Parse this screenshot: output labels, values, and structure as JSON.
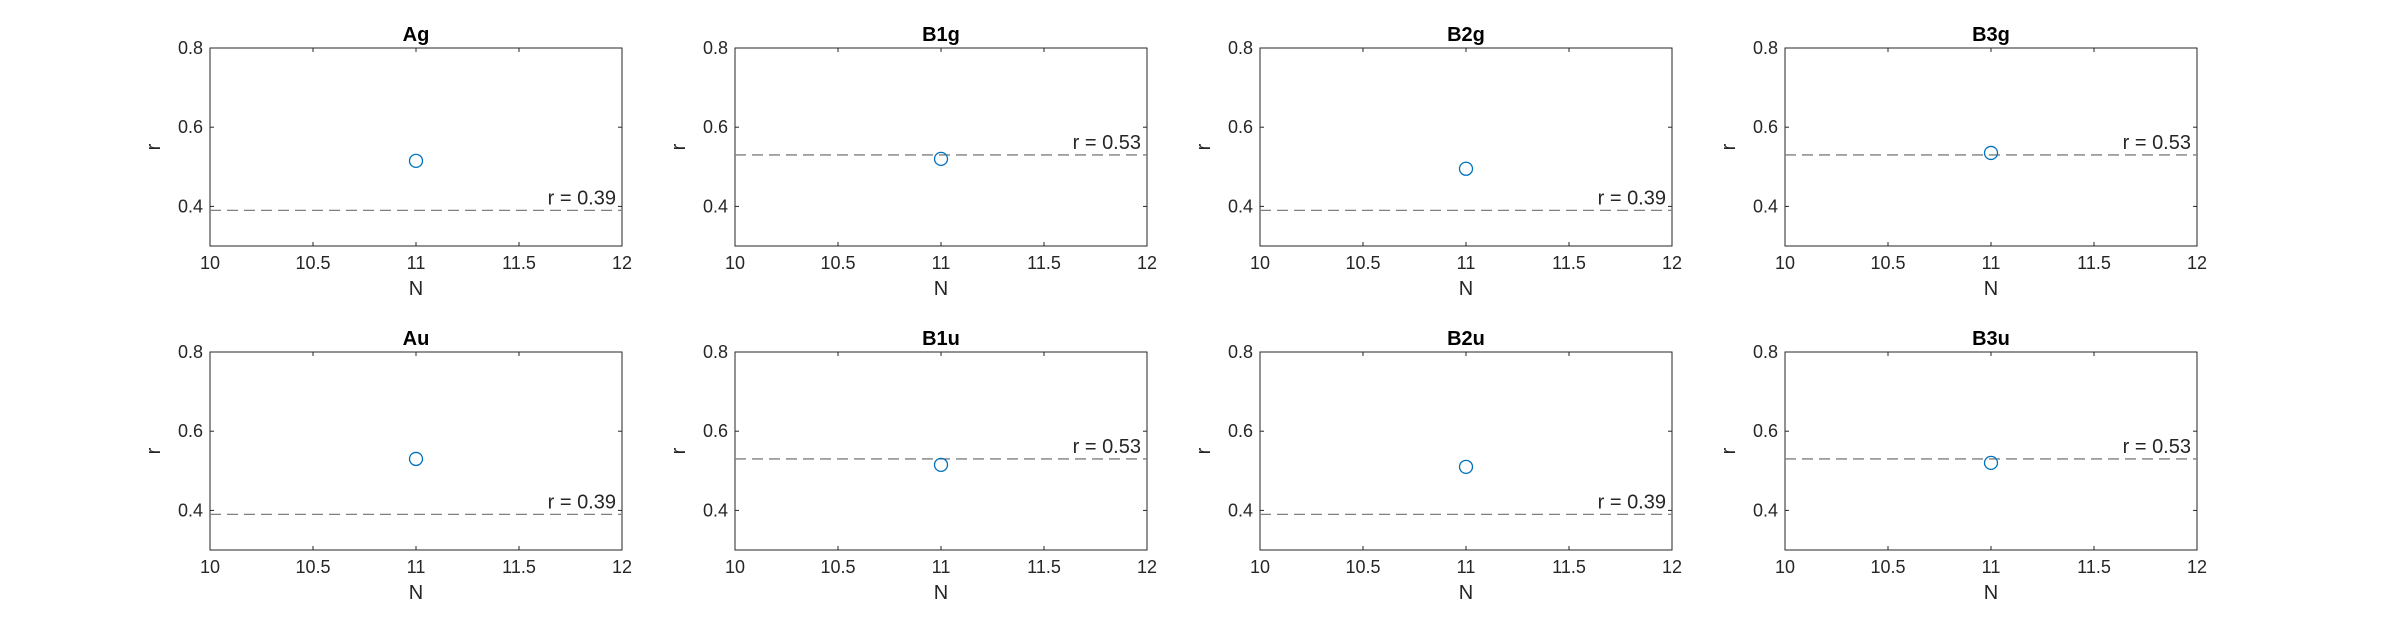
{
  "figure": {
    "colors": {
      "marker": "#0072BD",
      "reference_line": "#7f7f7f",
      "axes": "#262626",
      "background": "#ffffff"
    }
  },
  "chart_data": [
    {
      "type": "scatter",
      "title": "Ag",
      "xlabel": "N",
      "ylabel": "r",
      "xlim": [
        10,
        12
      ],
      "ylim": [
        0.3,
        0.8
      ],
      "xticks": [
        "10",
        "10.5",
        "11",
        "11.5",
        "12"
      ],
      "yticks": [
        "0.4",
        "0.6",
        "0.8"
      ],
      "points": [
        {
          "x": 11,
          "y": 0.515
        }
      ],
      "reference": {
        "y": 0.39,
        "label": "r = 0.39",
        "style": "dashed"
      },
      "grid": false
    },
    {
      "type": "scatter",
      "title": "B1g",
      "xlabel": "N",
      "ylabel": "r",
      "xlim": [
        10,
        12
      ],
      "ylim": [
        0.3,
        0.8
      ],
      "xticks": [
        "10",
        "10.5",
        "11",
        "11.5",
        "12"
      ],
      "yticks": [
        "0.4",
        "0.6",
        "0.8"
      ],
      "points": [
        {
          "x": 11,
          "y": 0.52
        }
      ],
      "reference": {
        "y": 0.53,
        "label": "r = 0.53",
        "style": "dashed"
      },
      "grid": false
    },
    {
      "type": "scatter",
      "title": "B2g",
      "xlabel": "N",
      "ylabel": "r",
      "xlim": [
        10,
        12
      ],
      "ylim": [
        0.3,
        0.8
      ],
      "xticks": [
        "10",
        "10.5",
        "11",
        "11.5",
        "12"
      ],
      "yticks": [
        "0.4",
        "0.6",
        "0.8"
      ],
      "points": [
        {
          "x": 11,
          "y": 0.495
        }
      ],
      "reference": {
        "y": 0.39,
        "label": "r = 0.39",
        "style": "dashed"
      },
      "grid": false
    },
    {
      "type": "scatter",
      "title": "B3g",
      "xlabel": "N",
      "ylabel": "r",
      "xlim": [
        10,
        12
      ],
      "ylim": [
        0.3,
        0.8
      ],
      "xticks": [
        "10",
        "10.5",
        "11",
        "11.5",
        "12"
      ],
      "yticks": [
        "0.4",
        "0.6",
        "0.8"
      ],
      "points": [
        {
          "x": 11,
          "y": 0.535
        }
      ],
      "reference": {
        "y": 0.53,
        "label": "r = 0.53",
        "style": "dashed"
      },
      "grid": false
    },
    {
      "type": "scatter",
      "title": "Au",
      "xlabel": "N",
      "ylabel": "r",
      "xlim": [
        10,
        12
      ],
      "ylim": [
        0.3,
        0.8
      ],
      "xticks": [
        "10",
        "10.5",
        "11",
        "11.5",
        "12"
      ],
      "yticks": [
        "0.4",
        "0.6",
        "0.8"
      ],
      "points": [
        {
          "x": 11,
          "y": 0.53
        }
      ],
      "reference": {
        "y": 0.39,
        "label": "r = 0.39",
        "style": "dashed"
      },
      "grid": false
    },
    {
      "type": "scatter",
      "title": "B1u",
      "xlabel": "N",
      "ylabel": "r",
      "xlim": [
        10,
        12
      ],
      "ylim": [
        0.3,
        0.8
      ],
      "xticks": [
        "10",
        "10.5",
        "11",
        "11.5",
        "12"
      ],
      "yticks": [
        "0.4",
        "0.6",
        "0.8"
      ],
      "points": [
        {
          "x": 11,
          "y": 0.515
        }
      ],
      "reference": {
        "y": 0.53,
        "label": "r = 0.53",
        "style": "dashed"
      },
      "grid": false
    },
    {
      "type": "scatter",
      "title": "B2u",
      "xlabel": "N",
      "ylabel": "r",
      "xlim": [
        10,
        12
      ],
      "ylim": [
        0.3,
        0.8
      ],
      "xticks": [
        "10",
        "10.5",
        "11",
        "11.5",
        "12"
      ],
      "yticks": [
        "0.4",
        "0.6",
        "0.8"
      ],
      "points": [
        {
          "x": 11,
          "y": 0.51
        }
      ],
      "reference": {
        "y": 0.39,
        "label": "r = 0.39",
        "style": "dashed"
      },
      "grid": false
    },
    {
      "type": "scatter",
      "title": "B3u",
      "xlabel": "N",
      "ylabel": "r",
      "xlim": [
        10,
        12
      ],
      "ylim": [
        0.3,
        0.8
      ],
      "xticks": [
        "10",
        "10.5",
        "11",
        "11.5",
        "12"
      ],
      "yticks": [
        "0.4",
        "0.6",
        "0.8"
      ],
      "points": [
        {
          "x": 11,
          "y": 0.52
        }
      ],
      "reference": {
        "y": 0.53,
        "label": "r = 0.53",
        "style": "dashed"
      },
      "grid": false
    }
  ]
}
